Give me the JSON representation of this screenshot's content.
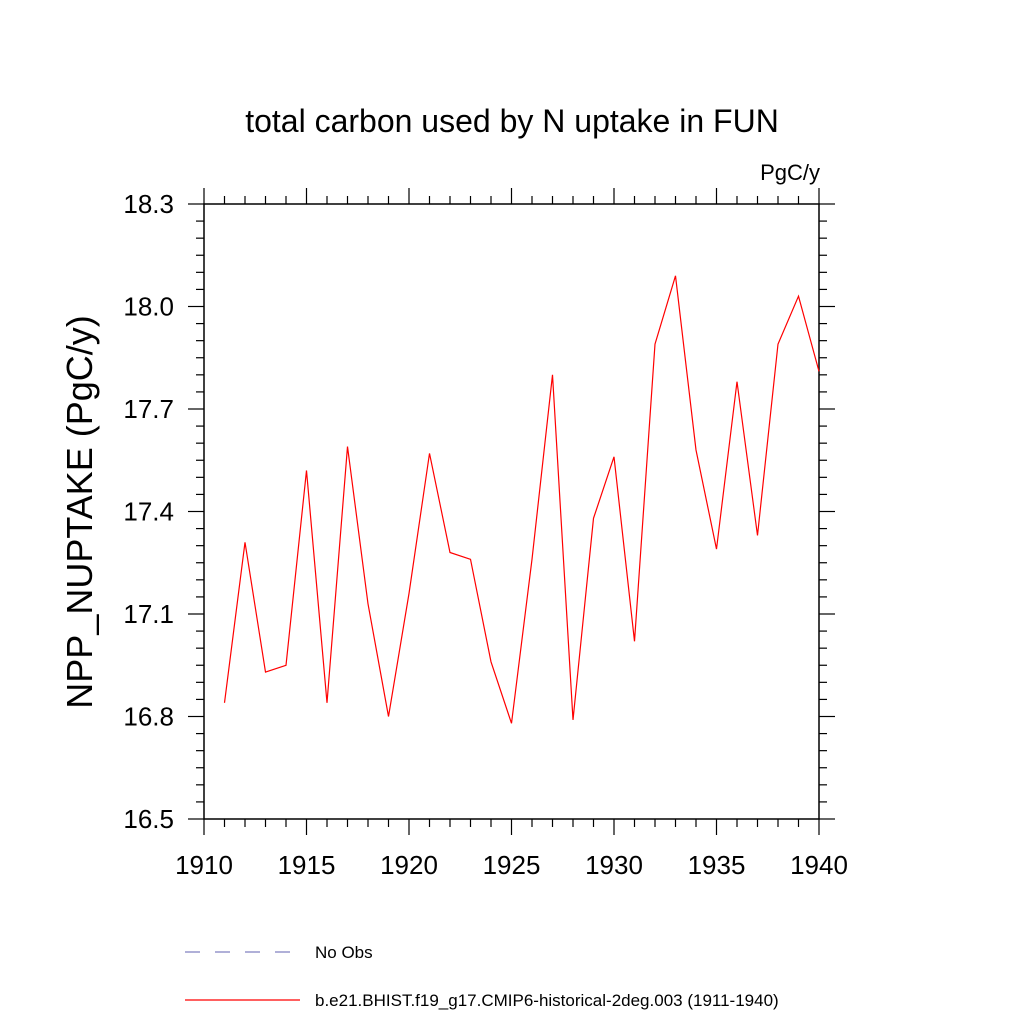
{
  "chart_data": {
    "type": "line",
    "title": "total carbon used by N uptake in FUN",
    "units_label": "PgC/y",
    "ylabel": "NPP_NUPTAKE  (PgC/y)",
    "xlabel": "",
    "xlim": [
      1910,
      1940
    ],
    "ylim": [
      16.5,
      18.3
    ],
    "x_ticks": [
      1910,
      1915,
      1920,
      1925,
      1930,
      1935,
      1940
    ],
    "y_ticks": [
      16.5,
      16.8,
      17.1,
      17.4,
      17.7,
      18.0,
      18.3
    ],
    "x_tick_labels": [
      "1910",
      "1915",
      "1920",
      "1925",
      "1930",
      "1935",
      "1940"
    ],
    "y_tick_labels": [
      "16.5",
      "16.8",
      "17.1",
      "17.4",
      "17.7",
      "18.0",
      "18.3"
    ],
    "grid": false,
    "legend_position": "bottom",
    "series": [
      {
        "name": "b.e21.BHIST.f19_g17.CMIP6-historical-2deg.003 (1911-1940)",
        "color": "#ff0000",
        "line_style": "solid",
        "x": [
          1911,
          1912,
          1913,
          1914,
          1915,
          1916,
          1917,
          1918,
          1919,
          1920,
          1921,
          1922,
          1923,
          1924,
          1925,
          1926,
          1927,
          1928,
          1929,
          1930,
          1931,
          1932,
          1933,
          1934,
          1935,
          1936,
          1937,
          1938,
          1939,
          1940
        ],
        "values": [
          16.84,
          17.31,
          16.93,
          16.95,
          17.52,
          16.84,
          17.59,
          17.13,
          16.8,
          17.16,
          17.57,
          17.28,
          17.26,
          16.96,
          16.78,
          17.26,
          17.8,
          16.79,
          17.38,
          17.56,
          17.02,
          17.89,
          18.09,
          17.58,
          17.29,
          17.78,
          17.33,
          17.89,
          18.03,
          17.81
        ]
      }
    ],
    "legend": [
      {
        "label": "No Obs",
        "color": "#8080c0",
        "line_style": "dashed"
      },
      {
        "label": "b.e21.BHIST.f19_g17.CMIP6-historical-2deg.003 (1911-1940)",
        "color": "#ff0000",
        "line_style": "solid"
      }
    ]
  }
}
